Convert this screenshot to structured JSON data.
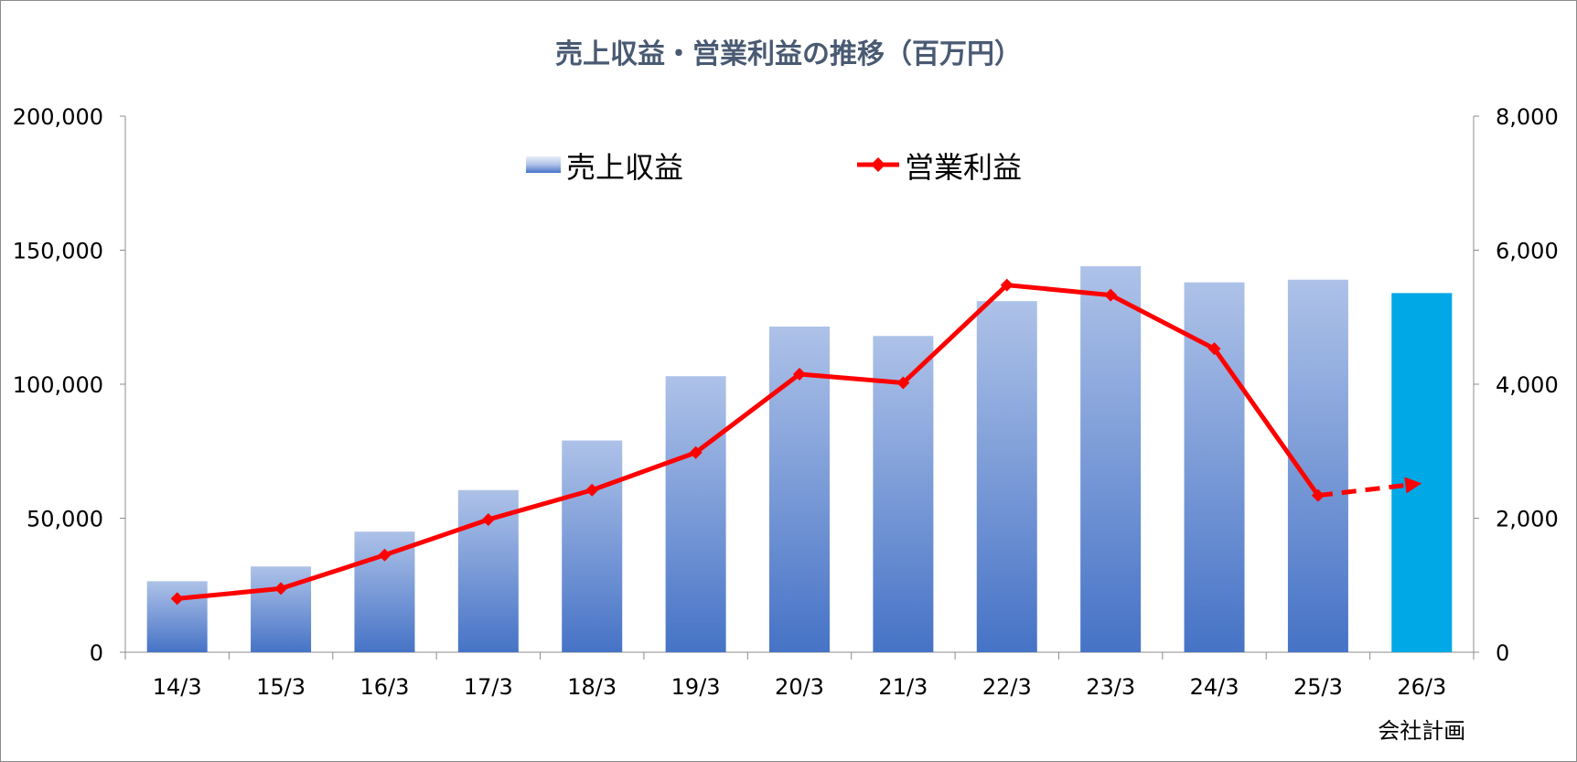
{
  "chart_data": {
    "type": "bar",
    "title": "売上収益・営業利益の推移（百万円）",
    "categories": [
      "14/3",
      "15/3",
      "16/3",
      "17/3",
      "18/3",
      "19/3",
      "20/3",
      "21/3",
      "22/3",
      "23/3",
      "24/3",
      "25/3",
      "26/3"
    ],
    "category_sublabels": [
      "",
      "",
      "",
      "",
      "",
      "",
      "",
      "",
      "",
      "",
      "",
      "",
      "会社計画"
    ],
    "series": [
      {
        "name": "売上収益",
        "type": "bar",
        "axis": "left",
        "values": [
          26500,
          32000,
          45000,
          60500,
          79000,
          103000,
          121500,
          118000,
          131000,
          144000,
          138000,
          139000,
          134000
        ],
        "color": "#4472c4",
        "forecast_color": "#00a8e6"
      },
      {
        "name": "営業利益",
        "type": "line",
        "axis": "right",
        "values": [
          800,
          950,
          1450,
          1980,
          2420,
          2980,
          4150,
          4020,
          5480,
          5330,
          4530,
          2340,
          2520
        ],
        "color": "#ff0000",
        "forecast_dashed": true
      }
    ],
    "y_left": {
      "ylim": [
        0,
        200000
      ],
      "ticks": [
        "0",
        "50,000",
        "100,000",
        "150,000",
        "200,000"
      ]
    },
    "y_right": {
      "ylim": [
        0,
        8000
      ],
      "ticks": [
        "0",
        "2,000",
        "4,000",
        "6,000",
        "8,000"
      ]
    },
    "legend_position": "top-center",
    "grid": false
  }
}
